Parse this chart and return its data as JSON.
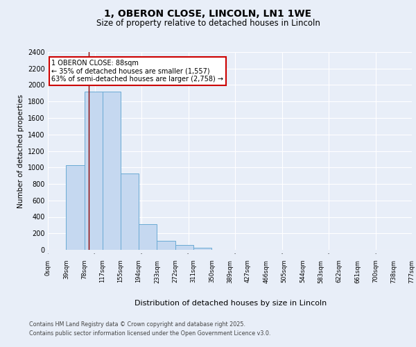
{
  "title": "1, OBERON CLOSE, LINCOLN, LN1 1WE",
  "subtitle": "Size of property relative to detached houses in Lincoln",
  "xlabel": "Distribution of detached houses by size in Lincoln",
  "ylabel": "Number of detached properties",
  "bar_edges": [
    0,
    39,
    78,
    117,
    155,
    194,
    233,
    272,
    311,
    350,
    389,
    427,
    466,
    505,
    544,
    583,
    622,
    661,
    700,
    738,
    777
  ],
  "bar_heights": [
    0,
    1030,
    1920,
    1920,
    930,
    315,
    110,
    55,
    25,
    0,
    0,
    0,
    0,
    0,
    0,
    0,
    0,
    0,
    0,
    0
  ],
  "bar_color": "#c5d8f0",
  "bar_edge_color": "#6aaad4",
  "property_line_x": 88,
  "property_line_color": "#8b0000",
  "annotation_text": "1 OBERON CLOSE: 88sqm\n← 35% of detached houses are smaller (1,557)\n63% of semi-detached houses are larger (2,758) →",
  "annotation_box_color": "#ffffff",
  "annotation_box_edgecolor": "#cc0000",
  "ylim": [
    0,
    2400
  ],
  "yticks": [
    0,
    200,
    400,
    600,
    800,
    1000,
    1200,
    1400,
    1600,
    1800,
    2000,
    2200,
    2400
  ],
  "tick_labels": [
    "0sqm",
    "39sqm",
    "78sqm",
    "117sqm",
    "155sqm",
    "194sqm",
    "233sqm",
    "272sqm",
    "311sqm",
    "350sqm",
    "389sqm",
    "427sqm",
    "466sqm",
    "505sqm",
    "544sqm",
    "583sqm",
    "622sqm",
    "661sqm",
    "700sqm",
    "738sqm",
    "777sqm"
  ],
  "background_color": "#e8eef8",
  "grid_color": "#ffffff",
  "footer_line1": "Contains HM Land Registry data © Crown copyright and database right 2025.",
  "footer_line2": "Contains public sector information licensed under the Open Government Licence v3.0."
}
